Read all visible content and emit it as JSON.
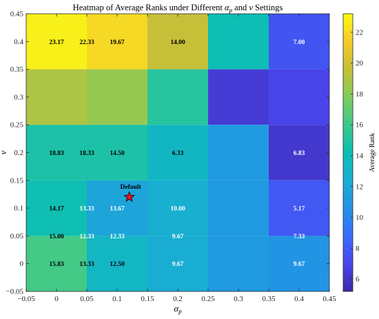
{
  "chart_data": {
    "type": "heatmap",
    "title_parts": [
      "Heatmap of Average Ranks under Different ",
      "α",
      "p",
      " and ",
      "ν",
      " Settings"
    ],
    "xlabel_parts": [
      "α",
      "p"
    ],
    "ylabel": "ν",
    "xlim": [
      -0.05,
      0.45
    ],
    "ylim": [
      -0.05,
      0.45
    ],
    "xticks": [
      -0.05,
      0,
      0.05,
      0.1,
      0.15,
      0.2,
      0.25,
      0.3,
      0.35,
      0.4,
      0.45
    ],
    "xtick_labels": [
      "−0.05",
      "0",
      "0.05",
      "0.1",
      "0.15",
      "0.2",
      "0.25",
      "0.3",
      "0.35",
      "0.4",
      "0.45"
    ],
    "yticks": [
      -0.05,
      0,
      0.05,
      0.1,
      0.15,
      0.2,
      0.25,
      0.3,
      0.35,
      0.4,
      0.45
    ],
    "ytick_labels": [
      "−0.05",
      "0",
      "0.05",
      "0.1",
      "0.15",
      "0.2",
      "0.25",
      "0.3",
      "0.35",
      "0.4",
      "0.45"
    ],
    "colorbar": {
      "label": "Average Rank",
      "range": [
        5.2,
        23.2
      ],
      "ticks": [
        6,
        8,
        10,
        12,
        14,
        16,
        18,
        20,
        22
      ],
      "colormap": "parula"
    },
    "cells": [
      {
        "x0": -0.05,
        "x1": 0.05,
        "y0": 0.35,
        "y1": 0.45,
        "value": 22.8
      },
      {
        "x0": 0.05,
        "x1": 0.15,
        "y0": 0.35,
        "y1": 0.45,
        "value": 22.0
      },
      {
        "x0": 0.15,
        "x1": 0.25,
        "y0": 0.35,
        "y1": 0.45,
        "value": 19.6
      },
      {
        "x0": 0.25,
        "x1": 0.35,
        "y0": 0.35,
        "y1": 0.45,
        "value": 14.2
      },
      {
        "x0": 0.35,
        "x1": 0.45,
        "y0": 0.35,
        "y1": 0.45,
        "value": 7.6
      },
      {
        "x0": -0.05,
        "x1": 0.05,
        "y0": 0.25,
        "y1": 0.35,
        "value": 19.0
      },
      {
        "x0": 0.05,
        "x1": 0.15,
        "y0": 0.25,
        "y1": 0.35,
        "value": 18.4
      },
      {
        "x0": 0.15,
        "x1": 0.25,
        "y0": 0.25,
        "y1": 0.35,
        "value": 15.2
      },
      {
        "x0": 0.25,
        "x1": 0.35,
        "y0": 0.25,
        "y1": 0.35,
        "value": 6.4
      },
      {
        "x0": 0.35,
        "x1": 0.45,
        "y0": 0.25,
        "y1": 0.35,
        "value": 6.9
      },
      {
        "x0": -0.05,
        "x1": 0.05,
        "y0": 0.15,
        "y1": 0.25,
        "value": 14.8
      },
      {
        "x0": 0.05,
        "x1": 0.15,
        "y0": 0.15,
        "y1": 0.25,
        "value": 14.8
      },
      {
        "x0": 0.15,
        "x1": 0.25,
        "y0": 0.15,
        "y1": 0.25,
        "value": 13.4
      },
      {
        "x0": 0.25,
        "x1": 0.35,
        "y0": 0.15,
        "y1": 0.25,
        "value": 11.2
      },
      {
        "x0": 0.35,
        "x1": 0.45,
        "y0": 0.15,
        "y1": 0.25,
        "value": 6.2
      },
      {
        "x0": -0.05,
        "x1": 0.05,
        "y0": 0.05,
        "y1": 0.15,
        "value": 14.3
      },
      {
        "x0": 0.05,
        "x1": 0.15,
        "y0": 0.05,
        "y1": 0.15,
        "value": 11.8
      },
      {
        "x0": 0.15,
        "x1": 0.25,
        "y0": 0.05,
        "y1": 0.15,
        "value": 12.6
      },
      {
        "x0": 0.25,
        "x1": 0.35,
        "y0": 0.05,
        "y1": 0.15,
        "value": 11.2
      },
      {
        "x0": 0.35,
        "x1": 0.45,
        "y0": 0.05,
        "y1": 0.15,
        "value": 7.8
      },
      {
        "x0": -0.05,
        "x1": 0.05,
        "y0": -0.05,
        "y1": 0.05,
        "value": 16.2
      },
      {
        "x0": 0.05,
        "x1": 0.15,
        "y0": -0.05,
        "y1": 0.05,
        "value": 13.3
      },
      {
        "x0": 0.15,
        "x1": 0.25,
        "y0": -0.05,
        "y1": 0.05,
        "value": 12.4
      },
      {
        "x0": 0.25,
        "x1": 0.35,
        "y0": -0.05,
        "y1": 0.05,
        "value": 11.2
      },
      {
        "x0": 0.35,
        "x1": 0.45,
        "y0": -0.05,
        "y1": 0.05,
        "value": 10.8
      }
    ],
    "annotations": [
      {
        "x": 0,
        "y": 0.4,
        "text": "23.17"
      },
      {
        "x": 0.05,
        "y": 0.4,
        "text": "22.33"
      },
      {
        "x": 0.1,
        "y": 0.4,
        "text": "19.67"
      },
      {
        "x": 0.2,
        "y": 0.4,
        "text": "14.00"
      },
      {
        "x": 0.4,
        "y": 0.4,
        "text": "7.00"
      },
      {
        "x": 0,
        "y": 0.2,
        "text": "18.83"
      },
      {
        "x": 0.05,
        "y": 0.2,
        "text": "18.33"
      },
      {
        "x": 0.1,
        "y": 0.2,
        "text": "14.50"
      },
      {
        "x": 0.2,
        "y": 0.2,
        "text": "6.33"
      },
      {
        "x": 0.4,
        "y": 0.2,
        "text": "6.83"
      },
      {
        "x": 0,
        "y": 0.1,
        "text": "14.17"
      },
      {
        "x": 0.05,
        "y": 0.1,
        "text": "13.33"
      },
      {
        "x": 0.1,
        "y": 0.1,
        "text": "13.67"
      },
      {
        "x": 0.2,
        "y": 0.1,
        "text": "10.00"
      },
      {
        "x": 0.4,
        "y": 0.1,
        "text": "5.17"
      },
      {
        "x": 0,
        "y": 0.05,
        "text": "15.00"
      },
      {
        "x": 0.05,
        "y": 0.05,
        "text": "12.33"
      },
      {
        "x": 0.1,
        "y": 0.05,
        "text": "12.33"
      },
      {
        "x": 0.2,
        "y": 0.05,
        "text": "9.67"
      },
      {
        "x": 0.4,
        "y": 0.05,
        "text": "7.33"
      },
      {
        "x": 0,
        "y": 0,
        "text": "15.83"
      },
      {
        "x": 0.05,
        "y": 0,
        "text": "13.33"
      },
      {
        "x": 0.1,
        "y": 0,
        "text": "12.50"
      },
      {
        "x": 0.2,
        "y": 0,
        "text": "9.67"
      },
      {
        "x": 0.4,
        "y": 0,
        "text": "9.67"
      }
    ],
    "marker": {
      "x": 0.12,
      "y": 0.12,
      "shape": "star",
      "color": "#e8161b",
      "label": "Default"
    }
  }
}
